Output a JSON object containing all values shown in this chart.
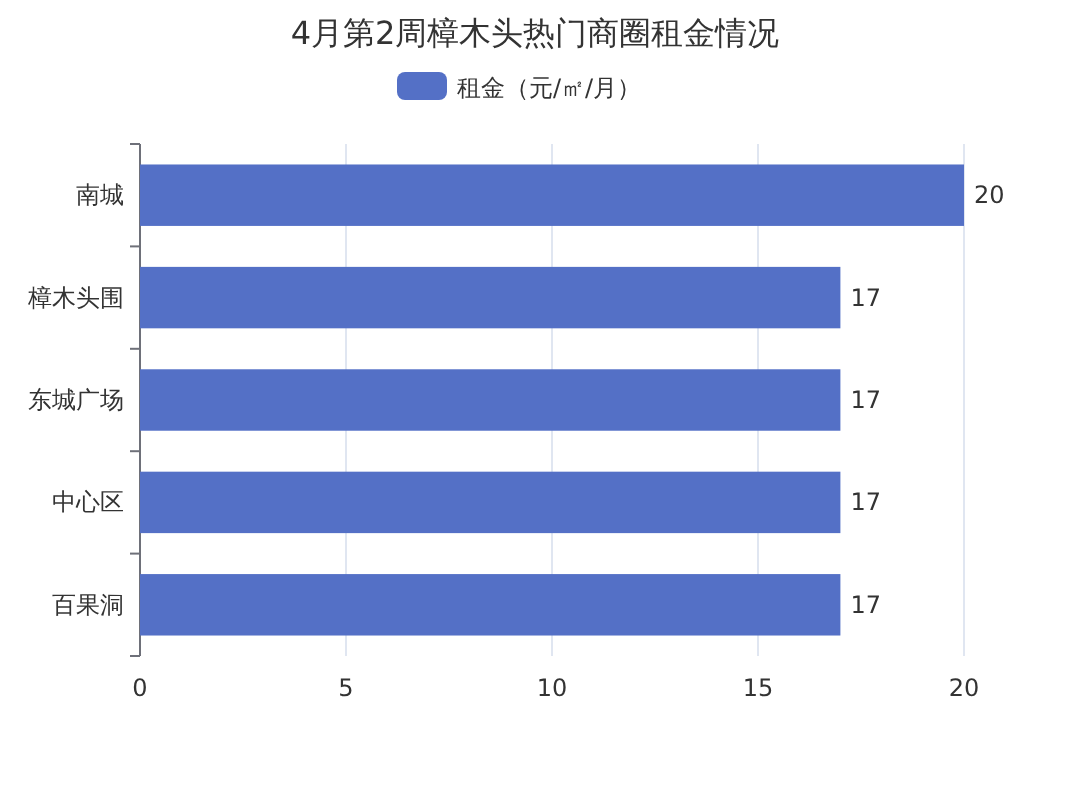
{
  "chart_data": {
    "type": "bar",
    "orientation": "horizontal",
    "title": "4月第2周樟木头热门商圈租金情况",
    "categories": [
      "南城",
      "樟木头围",
      "东城广场",
      "中心区",
      "百果洞"
    ],
    "series": [
      {
        "name": "租金（元/㎡/月）",
        "color": "#5470c6",
        "values": [
          20,
          17,
          17,
          17,
          17
        ]
      }
    ],
    "xlim": [
      0,
      20
    ],
    "xticks": [
      0,
      5,
      10,
      15,
      20
    ],
    "grid": "x",
    "legend": "top",
    "data_labels": true
  }
}
